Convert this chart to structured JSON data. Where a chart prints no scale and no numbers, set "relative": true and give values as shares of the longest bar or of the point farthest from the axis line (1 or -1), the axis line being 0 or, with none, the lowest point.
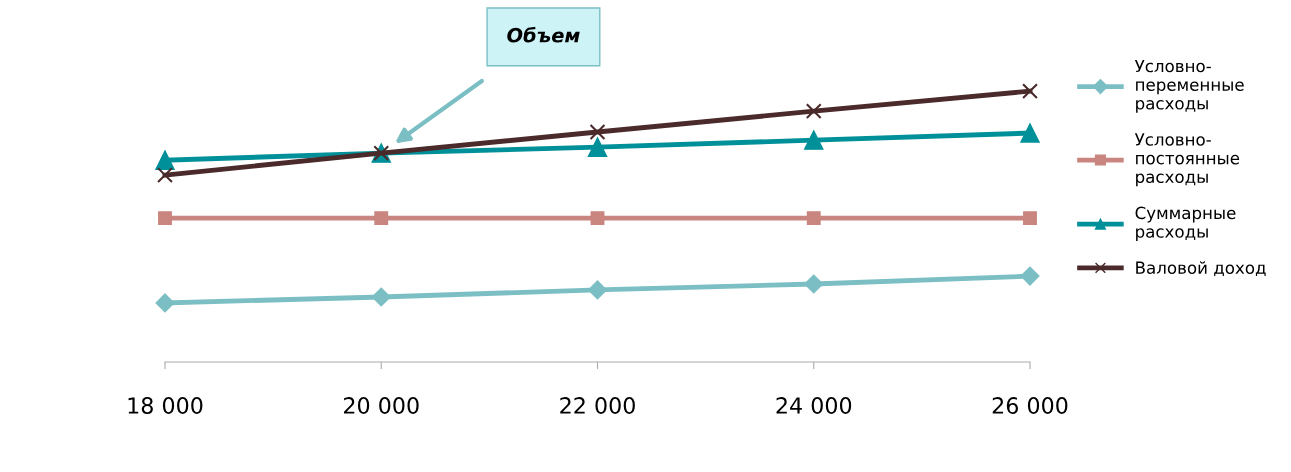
{
  "chart_data": {
    "type": "line",
    "relative": true,
    "categories": [
      "18 000",
      "20 000",
      "22 000",
      "24 000",
      "26 000"
    ],
    "series": [
      {
        "name": "Условно-\nпеременные\nрасходы",
        "color": "#7bbfc4",
        "marker": "diamond",
        "values": [
          0.218,
          0.24,
          0.266,
          0.288,
          0.317
        ]
      },
      {
        "name": "Условно-\nпостоянные\nрасходы",
        "color": "#c9857f",
        "marker": "square",
        "values": [
          0.531,
          0.531,
          0.531,
          0.531,
          0.531
        ]
      },
      {
        "name": "Суммарные\nрасходы",
        "color": "#009099",
        "marker": "triangle",
        "values": [
          0.745,
          0.771,
          0.793,
          0.819,
          0.845
        ]
      },
      {
        "name": "Валовой доход",
        "color": "#4a2a2a",
        "marker": "cross",
        "values": [
          0.69,
          0.771,
          0.849,
          0.926,
          1.0
        ]
      }
    ],
    "annotations": [
      "Объем"
    ],
    "legend": "right",
    "grid": false,
    "tick_labels": "x",
    "line_style": "solid"
  }
}
